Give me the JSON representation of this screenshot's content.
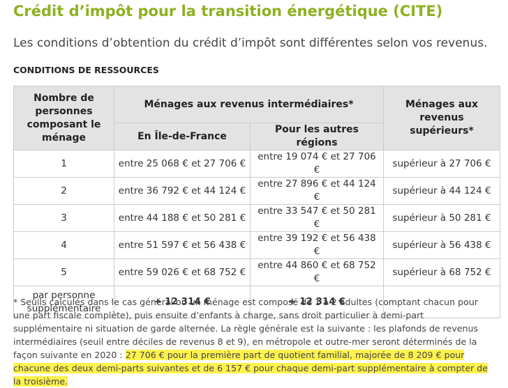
{
  "header": {
    "title": "Crédit d’impôt pour la transition énergétique (CITE)",
    "subtitle": "Les conditions d’obtention du crédit d’impôt sont différentes selon vos revenus.",
    "section": "CONDITIONS DE RESSOURCES"
  },
  "table": {
    "head": {
      "persons": "Nombre de personnes composant le ménage",
      "intermediate": "Ménages aux revenus intermédiaires*",
      "idf": "En Île-de-France",
      "other": "Pour les autres régions",
      "higher": "Ménages aux revenus supérieurs*"
    },
    "rows": [
      [
        "1",
        "entre 25 068 € et 27 706 €",
        "entre 19 074 € et 27 706 €",
        "supérieur à 27 706 €"
      ],
      [
        "2",
        "entre 36 792 € et 44 124 €",
        "entre 27 896 € et 44 124 €",
        "supérieur à 44 124 €"
      ],
      [
        "3",
        "entre 44 188 € et 50 281 €",
        "entre 33 547 € et 50 281 €",
        "supérieur à 50 281 €"
      ],
      [
        "4",
        "entre 51 597 € et 56 438 €",
        "entre 39 192 € et 56 438 €",
        "supérieur à 56 438 €"
      ],
      [
        "5",
        "entre 59 026 € et 68 752 €",
        "entre 44 860 € et 68 752 €",
        "supérieur à 68 752 €"
      ],
      [
        "par personne supplémentaire",
        "+ 12 314 €",
        "+ 12 314 €"
      ]
    ]
  },
  "footnote": {
    "text": "* Seuils calculés dans le cas général où un ménage est composé de 1 à 2 adultes (comptant chacun pour une part fiscale complète), puis ensuite d’enfants à charge, sans droit particulier à demi-part supplémentaire ni situation de garde alternée. La règle générale est la suivante : les plafonds de revenus intermédiaires (seuil entre déciles de revenus 8 et 9), en métropole et outre-mer seront déterminés de la façon suivante en 2020 :",
    "highlight": "27 706 € pour la première part de quotient familial, majorée de 8 209 € pour chacune des deux demi-parts suivantes et de 6 157 € pour chaque demi-part supplémentaire à compter de la troisième."
  }
}
